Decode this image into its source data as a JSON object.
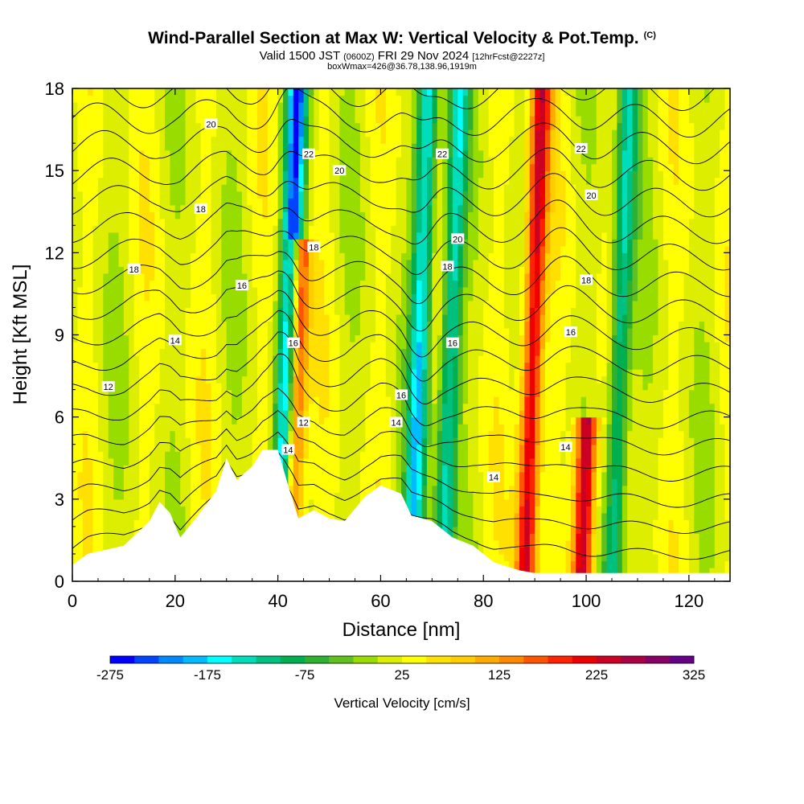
{
  "header": {
    "title": "Wind-Parallel Section at Max W: Vertical Velocity & Pot.Temp.",
    "copyright": "(C)",
    "valid_prefix": "Valid 1500 JST",
    "valid_utc": "(0600Z)",
    "valid_date": "FRI 29 Nov 2024",
    "forecast": "[12hrFcst@2227z]",
    "box_info": "boxWmax=426@36.78,138.96,1919m"
  },
  "chart_data": {
    "type": "heatmap",
    "xlabel": "Distance [nm]",
    "ylabel": "Height [Kft MSL]",
    "xlim": [
      0,
      128
    ],
    "ylim": [
      0,
      18
    ],
    "xticks": [
      0,
      20,
      40,
      60,
      80,
      100,
      120
    ],
    "yticks": [
      0,
      3,
      6,
      9,
      12,
      15,
      18
    ],
    "colorbar": {
      "title": "Vertical Velocity [cm/s]",
      "min": -275,
      "max": 325,
      "step": 25,
      "tick_labels": [
        "-275",
        "-175",
        "-75",
        "25",
        "125",
        "225",
        "325"
      ],
      "colors": [
        "#0000ff",
        "#0044ff",
        "#0088ff",
        "#00bbff",
        "#00ffff",
        "#00ddbb",
        "#00c080",
        "#00b050",
        "#30b030",
        "#60c020",
        "#99dd00",
        "#ddee00",
        "#ffff00",
        "#ffe000",
        "#ffcc00",
        "#ffaa00",
        "#ff8800",
        "#ff5500",
        "#ff2200",
        "#ee0000",
        "#cc0022",
        "#aa0044",
        "#880066",
        "#660088"
      ]
    },
    "velocity_bands": [
      {
        "x": 41.5,
        "w": -260,
        "top": 18
      },
      {
        "x": 43.0,
        "w": 240,
        "top": 12
      },
      {
        "x": 67.0,
        "w": -180,
        "top": 18
      },
      {
        "x": 73.0,
        "w": -160,
        "top": 18
      },
      {
        "x": 89.0,
        "w": 220,
        "top": 18
      },
      {
        "x": 100.0,
        "w": 260,
        "top": 5.5
      },
      {
        "x": 106.0,
        "w": -150,
        "top": 18
      }
    ],
    "terrain_kft": [
      {
        "x": 0,
        "h": 0.6
      },
      {
        "x": 3,
        "h": 1.0
      },
      {
        "x": 10,
        "h": 1.3
      },
      {
        "x": 15,
        "h": 2.2
      },
      {
        "x": 17,
        "h": 2.9
      },
      {
        "x": 19,
        "h": 2.5
      },
      {
        "x": 21,
        "h": 1.6
      },
      {
        "x": 24,
        "h": 2.3
      },
      {
        "x": 28,
        "h": 3.3
      },
      {
        "x": 30,
        "h": 4.5
      },
      {
        "x": 32,
        "h": 3.7
      },
      {
        "x": 35,
        "h": 4.2
      },
      {
        "x": 37,
        "h": 4.8
      },
      {
        "x": 40,
        "h": 4.8
      },
      {
        "x": 42,
        "h": 3.5
      },
      {
        "x": 44,
        "h": 2.3
      },
      {
        "x": 47,
        "h": 2.6
      },
      {
        "x": 50,
        "h": 2.3
      },
      {
        "x": 53,
        "h": 2.2
      },
      {
        "x": 57,
        "h": 3.1
      },
      {
        "x": 60,
        "h": 3.5
      },
      {
        "x": 64,
        "h": 3.2
      },
      {
        "x": 66,
        "h": 2.4
      },
      {
        "x": 70,
        "h": 2.2
      },
      {
        "x": 74,
        "h": 1.6
      },
      {
        "x": 78,
        "h": 1.3
      },
      {
        "x": 82,
        "h": 0.7
      },
      {
        "x": 87,
        "h": 0.4
      },
      {
        "x": 90,
        "h": 0.3
      },
      {
        "x": 100,
        "h": 0.3
      },
      {
        "x": 128,
        "h": 0.3
      }
    ],
    "isentrope_labels": [
      {
        "text": "20",
        "x": 27,
        "y": 16.7
      },
      {
        "text": "22",
        "x": 46,
        "y": 15.6
      },
      {
        "text": "20",
        "x": 52,
        "y": 15.0
      },
      {
        "text": "18",
        "x": 25,
        "y": 13.6
      },
      {
        "text": "18",
        "x": 47,
        "y": 12.2
      },
      {
        "text": "18",
        "x": 12,
        "y": 11.4
      },
      {
        "text": "16",
        "x": 33,
        "y": 10.8
      },
      {
        "text": "14",
        "x": 20,
        "y": 8.8
      },
      {
        "text": "16",
        "x": 43,
        "y": 8.7
      },
      {
        "text": "12",
        "x": 7,
        "y": 7.1
      },
      {
        "text": "12",
        "x": 45,
        "y": 5.8
      },
      {
        "text": "14",
        "x": 42,
        "y": 4.8
      },
      {
        "text": "22",
        "x": 72,
        "y": 15.6
      },
      {
        "text": "20",
        "x": 75,
        "y": 12.5
      },
      {
        "text": "18",
        "x": 73,
        "y": 11.5
      },
      {
        "text": "16",
        "x": 74,
        "y": 8.7
      },
      {
        "text": "16",
        "x": 64,
        "y": 6.8
      },
      {
        "text": "14",
        "x": 63,
        "y": 5.8
      },
      {
        "text": "14",
        "x": 82,
        "y": 3.8
      },
      {
        "text": "22",
        "x": 99,
        "y": 15.8
      },
      {
        "text": "20",
        "x": 101,
        "y": 14.1
      },
      {
        "text": "18",
        "x": 100,
        "y": 11.0
      },
      {
        "text": "16",
        "x": 97,
        "y": 9.1
      },
      {
        "text": "14",
        "x": 96,
        "y": 4.9
      }
    ]
  }
}
